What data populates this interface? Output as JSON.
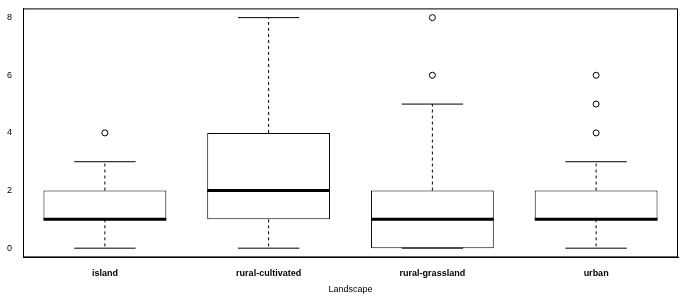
{
  "chart_data": {
    "type": "boxplot",
    "x_label": "Landscape",
    "categories": [
      "island",
      "rural-cultivated",
      "rural-grassland",
      "urban"
    ],
    "boxes": [
      {
        "min": 0,
        "q1": 1,
        "median": 1,
        "q3": 2,
        "max": 3,
        "outliers": [
          4
        ]
      },
      {
        "min": 0,
        "q1": 1,
        "median": 2,
        "q3": 4,
        "max": 8,
        "outliers": []
      },
      {
        "min": 0,
        "q1": 0,
        "median": 1,
        "q3": 2,
        "max": 5,
        "outliers": [
          6,
          8
        ]
      },
      {
        "min": 0,
        "q1": 1,
        "median": 1,
        "q3": 2,
        "max": 3,
        "outliers": [
          4,
          5,
          6
        ]
      }
    ],
    "color": "#000000",
    "ylim": [
      -0.32,
      8.32
    ],
    "yticks": [
      0,
      2,
      4,
      6,
      8
    ],
    "grid": false
  }
}
